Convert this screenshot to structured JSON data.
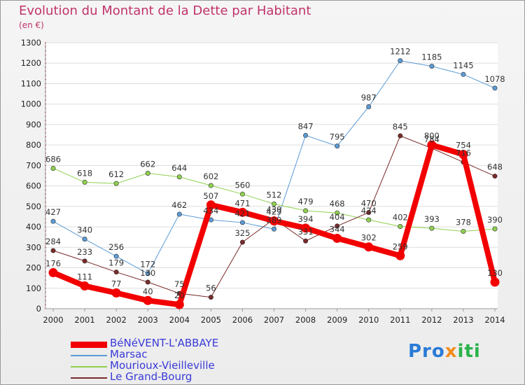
{
  "title": "Evolution du Montant de la Dette par Habitant",
  "subtitle": "(en €)",
  "logo": {
    "part1": "Pro",
    "part2": "x",
    "part3": "iti"
  },
  "chart_data": {
    "type": "line",
    "title": "Evolution du Montant de la Dette par Habitant",
    "ylabel": "(en €)",
    "x": [
      "2000",
      "2001",
      "2002",
      "2003",
      "2004",
      "2005",
      "2006",
      "2007",
      "2008",
      "2009",
      "2010",
      "2011",
      "2012",
      "2013",
      "2014"
    ],
    "ylim": [
      0,
      1300
    ],
    "yticks": [
      0,
      100,
      200,
      300,
      400,
      500,
      600,
      700,
      800,
      900,
      1000,
      1100,
      1200,
      1300
    ],
    "grid": "horizontal",
    "legend_position": "bottom-left",
    "series": [
      {
        "name": "Marsac",
        "color": "#5b9bd5",
        "width": 1,
        "values": [
          427,
          340,
          256,
          172,
          462,
          434,
          421,
          389,
          847,
          795,
          987,
          1212,
          1185,
          1145,
          1078
        ]
      },
      {
        "name": "Mourioux-Vieilleville",
        "color": "#8fd14f",
        "width": 1,
        "values": [
          686,
          618,
          612,
          662,
          644,
          602,
          560,
          512,
          479,
          468,
          434,
          402,
          393,
          378,
          390
        ]
      },
      {
        "name": "Le Grand-Bourg",
        "color": "#7a2a2a",
        "width": 1,
        "values": [
          284,
          233,
          179,
          130,
          75,
          56,
          325,
          439,
          331,
          404,
          470,
          845,
          784,
          716,
          648
        ]
      },
      {
        "name": "BéNéVENT-L'ABBAYE",
        "color": "#f20000",
        "width": 8,
        "values": [
          176,
          111,
          77,
          40,
          20,
          507,
          471,
          429,
          394,
          344,
          302,
          259,
          800,
          754,
          130
        ]
      }
    ],
    "legend_order": [
      "BéNéVENT-L'ABBAYE",
      "Marsac",
      "Mourioux-Vieilleville",
      "Le Grand-Bourg"
    ]
  }
}
